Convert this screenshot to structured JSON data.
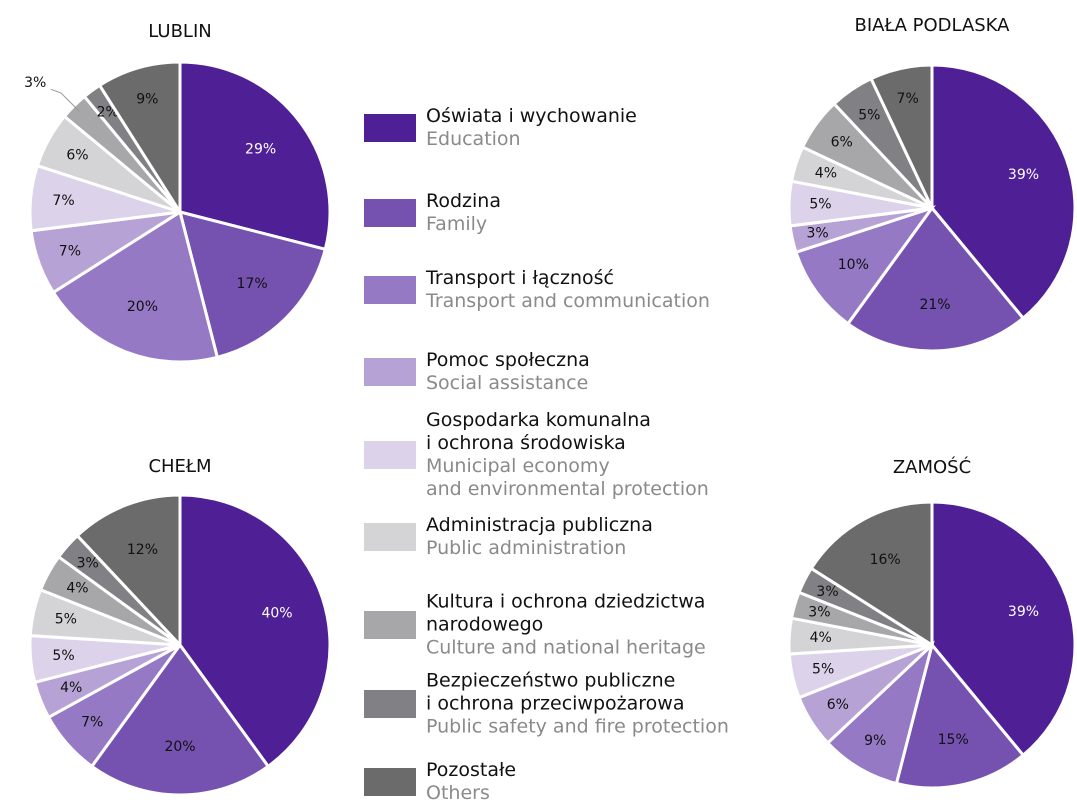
{
  "legend": {
    "labels": [
      [
        "Oświata i wychowanie"
      ],
      [
        "Rodzina"
      ],
      [
        "Transport i łączność"
      ],
      [
        "Pomoc społeczna"
      ],
      [
        "Gospodarka komunalna",
        "i ochrona środowiska"
      ],
      [
        "Administracja publiczna"
      ],
      [
        "Kultura i ochrona dziedzictwa",
        "narodowego"
      ],
      [
        "Bezpieczeństwo publiczne",
        "i ochrona przeciwpożarowa"
      ],
      [
        "Pozostałe"
      ]
    ],
    "sublabels": [
      [
        "Education"
      ],
      [
        "Family"
      ],
      [
        "Transport and communication"
      ],
      [
        "Social assistance"
      ],
      [
        "Municipal economy",
        "and environmental protection"
      ],
      [
        "Public administration"
      ],
      [
        "Culture and national heritage"
      ],
      [
        "Public safety and fire protection"
      ],
      [
        "Others"
      ]
    ],
    "colors": [
      "#4f1f96",
      "#7552b0",
      "#9679c4",
      "#b7a2d6",
      "#dcd2ea",
      "#d4d4d6",
      "#a7a7aa",
      "#818185",
      "#6b6b6b"
    ]
  },
  "chart_data": [
    {
      "type": "pie",
      "title": "LUBLIN",
      "values": [
        29,
        17,
        20,
        7,
        7,
        6,
        3,
        2,
        9
      ],
      "value_labels": [
        "29%",
        "17%",
        "20%",
        "7%",
        "7%",
        "6%",
        "3%",
        "2%",
        "9%"
      ]
    },
    {
      "type": "pie",
      "title": "BIAŁA PODLASKA",
      "values": [
        39,
        21,
        10,
        3,
        5,
        4,
        6,
        5,
        7
      ],
      "value_labels": [
        "39%",
        "21%",
        "10%",
        "3%",
        "5%",
        "4%",
        "6%",
        "5%",
        "7%"
      ]
    },
    {
      "type": "pie",
      "title": "CHEŁM",
      "values": [
        40,
        20,
        7,
        4,
        5,
        5,
        4,
        3,
        12
      ],
      "value_labels": [
        "40%",
        "20%",
        "7%",
        "4%",
        "5%",
        "5%",
        "4%",
        "3%",
        "12%"
      ]
    },
    {
      "type": "pie",
      "title": "ZAMOŚĆ",
      "values": [
        39,
        15,
        9,
        6,
        5,
        4,
        3,
        3,
        16
      ],
      "value_labels": [
        "39%",
        "15%",
        "9%",
        "6%",
        "5%",
        "4%",
        "3%",
        "3%",
        "16%"
      ]
    }
  ]
}
